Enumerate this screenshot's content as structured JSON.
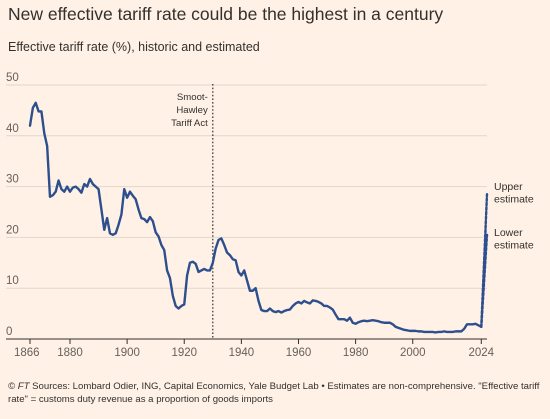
{
  "header": {
    "title": "New effective tariff rate could be the highest in a century",
    "subtitle": "Effective tariff rate (%), historic and estimated"
  },
  "footer": {
    "ft": "© FT",
    "text": " Sources: Lombard Odier, ING, Capital Economics, Yale Budget Lab • Estimates are non-comprehensive. \"Effective tariff rate\" = customs duty revenue as a proportion of goods imports"
  },
  "colors": {
    "line": "#2E4F8E",
    "estimate_band": "#D3D3D8",
    "grid": "#E0D6CD",
    "axis": "#33302E",
    "background": "#FFF1E5"
  },
  "chart_data": {
    "type": "line",
    "title": "New effective tariff rate could be the highest in a century",
    "subtitle": "Effective tariff rate (%), historic and estimated",
    "xlim": [
      1866,
      2026
    ],
    "ylim": [
      0,
      50
    ],
    "x_ticks": [
      1866,
      1880,
      1900,
      1920,
      1940,
      1960,
      1980,
      2000,
      2024
    ],
    "y_ticks": [
      0,
      10,
      20,
      30,
      40,
      50
    ],
    "grid": "horizontal",
    "annotation": {
      "x": 1930,
      "lines": [
        "Smoot-",
        "Hawley",
        "Tariff Act"
      ]
    },
    "series": [
      {
        "key": "historic",
        "points": [
          [
            1866,
            42.0
          ],
          [
            1867,
            45.5
          ],
          [
            1868,
            46.5
          ],
          [
            1869,
            44.8
          ],
          [
            1870,
            44.8
          ],
          [
            1871,
            40.5
          ],
          [
            1872,
            38.0
          ],
          [
            1873,
            28.0
          ],
          [
            1874,
            28.3
          ],
          [
            1875,
            29.0
          ],
          [
            1876,
            31.2
          ],
          [
            1877,
            29.5
          ],
          [
            1878,
            29.0
          ],
          [
            1879,
            30.0
          ],
          [
            1880,
            29.0
          ],
          [
            1881,
            29.8
          ],
          [
            1882,
            30.0
          ],
          [
            1883,
            29.5
          ],
          [
            1884,
            28.8
          ],
          [
            1885,
            30.5
          ],
          [
            1886,
            30.0
          ],
          [
            1887,
            31.5
          ],
          [
            1888,
            30.5
          ],
          [
            1889,
            30.0
          ],
          [
            1890,
            29.5
          ],
          [
            1891,
            25.5
          ],
          [
            1892,
            21.5
          ],
          [
            1893,
            23.8
          ],
          [
            1894,
            20.8
          ],
          [
            1895,
            20.5
          ],
          [
            1896,
            20.8
          ],
          [
            1897,
            22.5
          ],
          [
            1898,
            24.5
          ],
          [
            1899,
            29.5
          ],
          [
            1900,
            27.8
          ],
          [
            1901,
            29.0
          ],
          [
            1902,
            28.2
          ],
          [
            1903,
            27.5
          ],
          [
            1904,
            25.5
          ],
          [
            1905,
            23.8
          ],
          [
            1906,
            23.6
          ],
          [
            1907,
            23.0
          ],
          [
            1908,
            24.0
          ],
          [
            1909,
            23.2
          ],
          [
            1910,
            21.0
          ],
          [
            1911,
            20.2
          ],
          [
            1912,
            18.5
          ],
          [
            1913,
            17.5
          ],
          [
            1914,
            13.5
          ],
          [
            1915,
            12.0
          ],
          [
            1916,
            8.5
          ],
          [
            1917,
            6.5
          ],
          [
            1918,
            6.0
          ],
          [
            1919,
            6.5
          ],
          [
            1920,
            6.8
          ],
          [
            1921,
            12.5
          ],
          [
            1922,
            15.0
          ],
          [
            1923,
            15.2
          ],
          [
            1924,
            14.8
          ],
          [
            1925,
            13.2
          ],
          [
            1926,
            13.5
          ],
          [
            1927,
            13.8
          ],
          [
            1928,
            13.5
          ],
          [
            1929,
            13.5
          ],
          [
            1930,
            15.0
          ],
          [
            1931,
            17.8
          ],
          [
            1932,
            19.5
          ],
          [
            1933,
            19.8
          ],
          [
            1934,
            18.5
          ],
          [
            1935,
            17.0
          ],
          [
            1936,
            16.5
          ],
          [
            1937,
            15.7
          ],
          [
            1938,
            15.5
          ],
          [
            1939,
            13.2
          ],
          [
            1940,
            12.5
          ],
          [
            1941,
            13.5
          ],
          [
            1942,
            11.5
          ],
          [
            1943,
            9.5
          ],
          [
            1944,
            9.5
          ],
          [
            1945,
            10.0
          ],
          [
            1946,
            7.5
          ],
          [
            1947,
            5.7
          ],
          [
            1948,
            5.5
          ],
          [
            1949,
            5.5
          ],
          [
            1950,
            6.0
          ],
          [
            1951,
            5.5
          ],
          [
            1952,
            5.3
          ],
          [
            1953,
            5.5
          ],
          [
            1954,
            5.2
          ],
          [
            1955,
            5.5
          ],
          [
            1956,
            5.7
          ],
          [
            1957,
            5.8
          ],
          [
            1958,
            6.5
          ],
          [
            1959,
            7.0
          ],
          [
            1960,
            7.3
          ],
          [
            1961,
            7.0
          ],
          [
            1962,
            7.5
          ],
          [
            1963,
            7.2
          ],
          [
            1964,
            7.0
          ],
          [
            1965,
            7.6
          ],
          [
            1966,
            7.5
          ],
          [
            1967,
            7.3
          ],
          [
            1968,
            7.0
          ],
          [
            1969,
            6.5
          ],
          [
            1970,
            6.5
          ],
          [
            1971,
            6.2
          ],
          [
            1972,
            5.8
          ],
          [
            1973,
            4.8
          ],
          [
            1974,
            3.9
          ],
          [
            1975,
            3.9
          ],
          [
            1976,
            3.9
          ],
          [
            1977,
            3.6
          ],
          [
            1978,
            4.2
          ],
          [
            1979,
            3.2
          ],
          [
            1980,
            3.0
          ],
          [
            1981,
            3.3
          ],
          [
            1982,
            3.5
          ],
          [
            1983,
            3.6
          ],
          [
            1984,
            3.5
          ],
          [
            1985,
            3.6
          ],
          [
            1986,
            3.7
          ],
          [
            1987,
            3.6
          ],
          [
            1988,
            3.5
          ],
          [
            1989,
            3.3
          ],
          [
            1990,
            3.2
          ],
          [
            1991,
            3.2
          ],
          [
            1992,
            3.2
          ],
          [
            1993,
            2.9
          ],
          [
            1994,
            2.4
          ],
          [
            1995,
            2.2
          ],
          [
            1996,
            2.0
          ],
          [
            1997,
            1.8
          ],
          [
            1998,
            1.7
          ],
          [
            1999,
            1.6
          ],
          [
            2000,
            1.6
          ],
          [
            2001,
            1.6
          ],
          [
            2002,
            1.5
          ],
          [
            2003,
            1.5
          ],
          [
            2004,
            1.4
          ],
          [
            2005,
            1.4
          ],
          [
            2006,
            1.4
          ],
          [
            2007,
            1.4
          ],
          [
            2008,
            1.3
          ],
          [
            2009,
            1.4
          ],
          [
            2010,
            1.4
          ],
          [
            2011,
            1.5
          ],
          [
            2012,
            1.4
          ],
          [
            2013,
            1.4
          ],
          [
            2014,
            1.4
          ],
          [
            2015,
            1.5
          ],
          [
            2016,
            1.5
          ],
          [
            2017,
            1.5
          ],
          [
            2018,
            2.0
          ],
          [
            2019,
            2.9
          ],
          [
            2020,
            2.9
          ],
          [
            2021,
            2.9
          ],
          [
            2022,
            3.0
          ],
          [
            2023,
            2.7
          ],
          [
            2024,
            2.4
          ]
        ]
      },
      {
        "key": "upper",
        "name": "Upper estimate",
        "points": [
          [
            2024,
            2.4
          ],
          [
            2026,
            28.5
          ]
        ]
      },
      {
        "key": "lower",
        "name": "Lower estimate",
        "points": [
          [
            2024,
            2.4
          ],
          [
            2026,
            20.5
          ]
        ]
      }
    ]
  }
}
